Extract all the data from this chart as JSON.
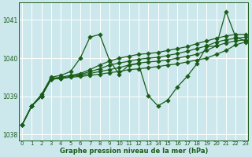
{
  "xlabel": "Graphe pression niveau de la mer (hPa)",
  "bg_color": "#cce8ec",
  "grid_color": "#ffffff",
  "line_color": "#1a5c1a",
  "ylim": [
    1037.85,
    1041.45
  ],
  "xlim": [
    -0.3,
    23.3
  ],
  "yticks": [
    1038,
    1039,
    1040,
    1041
  ],
  "xticks": [
    0,
    1,
    2,
    3,
    4,
    5,
    6,
    7,
    8,
    9,
    10,
    11,
    12,
    13,
    14,
    15,
    16,
    17,
    18,
    19,
    20,
    21,
    22,
    23
  ],
  "series": [
    [
      1038.25,
      1038.75,
      1039.0,
      1039.45,
      1039.47,
      1039.5,
      1039.52,
      1039.55,
      1039.58,
      1039.62,
      1039.65,
      1039.7,
      1039.72,
      1039.75,
      1039.78,
      1039.82,
      1039.85,
      1039.9,
      1039.95,
      1040.0,
      1040.1,
      1040.2,
      1040.35,
      1040.42
    ],
    [
      1038.25,
      1038.75,
      1039.0,
      1039.45,
      1039.47,
      1039.52,
      1039.55,
      1039.6,
      1039.65,
      1039.7,
      1039.75,
      1039.82,
      1039.87,
      1039.9,
      1039.92,
      1039.95,
      1040.0,
      1040.05,
      1040.1,
      1040.2,
      1040.32,
      1040.4,
      1040.45,
      1040.48
    ],
    [
      1038.25,
      1038.75,
      1039.0,
      1039.45,
      1039.47,
      1039.52,
      1039.57,
      1039.65,
      1039.72,
      1039.82,
      1039.87,
      1039.92,
      1039.97,
      1040.0,
      1040.02,
      1040.07,
      1040.12,
      1040.18,
      1040.25,
      1040.32,
      1040.42,
      1040.48,
      1040.52,
      1040.55
    ],
    [
      1038.25,
      1038.75,
      1039.02,
      1039.47,
      1039.5,
      1039.55,
      1039.6,
      1039.7,
      1039.82,
      1039.92,
      1040.0,
      1040.05,
      1040.1,
      1040.12,
      1040.15,
      1040.2,
      1040.25,
      1040.3,
      1040.38,
      1040.45,
      1040.52,
      1040.58,
      1040.62,
      1040.62
    ],
    [
      1038.25,
      1038.75,
      1039.05,
      1039.5,
      1039.55,
      1039.65,
      1040.0,
      1040.55,
      1040.62,
      1039.95,
      1039.58,
      1039.82,
      1039.85,
      1039.02,
      1038.75,
      1038.9,
      1039.25,
      1039.52,
      1039.85,
      1040.3,
      1040.32,
      1041.22,
      1040.55,
      1040.45
    ]
  ],
  "markersize": 2.8,
  "linewidth": 0.9
}
